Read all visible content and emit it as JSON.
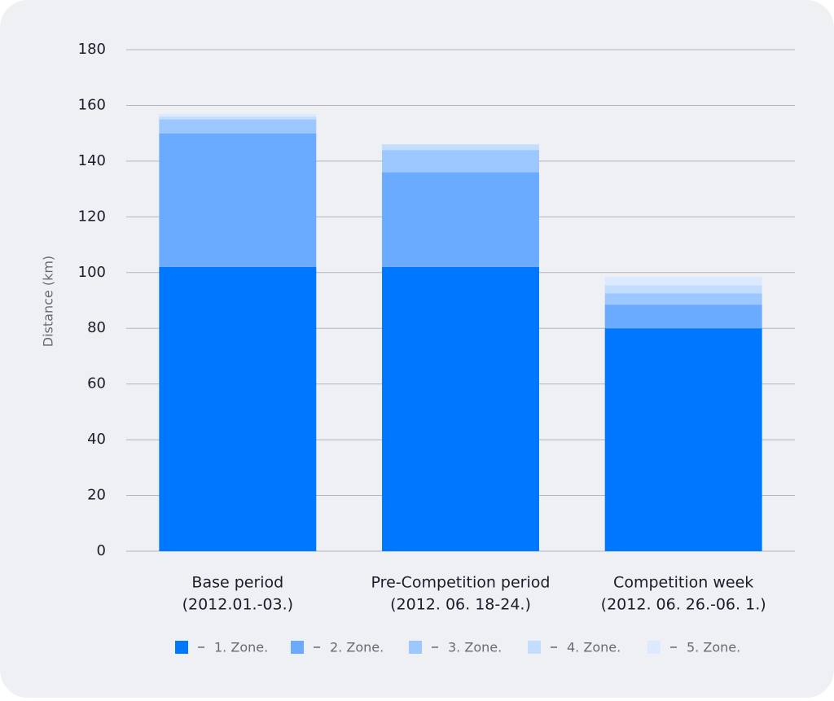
{
  "chart_data": {
    "type": "stacked_bar",
    "y_label": "Distance (km)",
    "categories": [
      [
        "Base period",
        "(2012.01.-03.)"
      ],
      [
        "Pre-Competition period",
        "(2012. 06. 18-24.)"
      ],
      [
        "Competition week",
        "(2012. 06. 26.-06. 1.)"
      ]
    ],
    "series": [
      {
        "name": "1. Zone.",
        "color": "#0077ff",
        "values": [
          102,
          102,
          80
        ]
      },
      {
        "name": "2. Zone.",
        "color": "#6aabff",
        "values": [
          48,
          34,
          8.5
        ]
      },
      {
        "name": "3. Zone.",
        "color": "#9cc7ff",
        "values": [
          5,
          8,
          4
        ]
      },
      {
        "name": "4. Zone.",
        "color": "#c3ddff",
        "values": [
          1,
          2,
          3
        ]
      },
      {
        "name": "5. Zone.",
        "color": "#dceaff",
        "values": [
          1,
          0,
          3
        ]
      }
    ],
    "ylim": [
      0,
      180
    ],
    "yticks": [
      0,
      20,
      40,
      60,
      80,
      100,
      120,
      140,
      160,
      180
    ],
    "grid": true
  }
}
